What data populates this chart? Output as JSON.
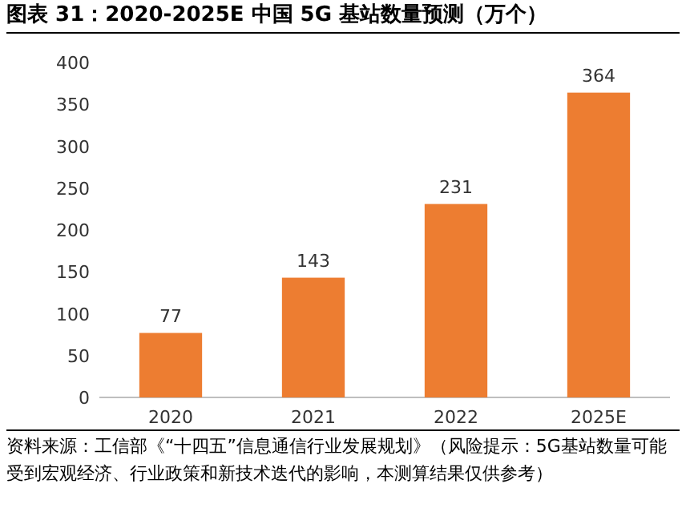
{
  "chart_data": {
    "type": "bar",
    "title": "图表 31：2020-2025E 中国 5G 基站数量预测（万个）",
    "categories": [
      "2020",
      "2021",
      "2022",
      "2025E"
    ],
    "values": [
      77,
      143,
      231,
      364
    ],
    "color": "#ed7d31",
    "ylim": [
      0,
      400
    ],
    "yticks": [
      0,
      50,
      100,
      150,
      200,
      250,
      300,
      350,
      400
    ],
    "data_labels": true,
    "annotations": [
      "资料来源：工信部《“十四五”信息通信行业发展规划》（风险提示：5G基站数量可能受到宏观经济、行业政策和新技术迭代的影响，本测算结果仅供参考）"
    ]
  }
}
